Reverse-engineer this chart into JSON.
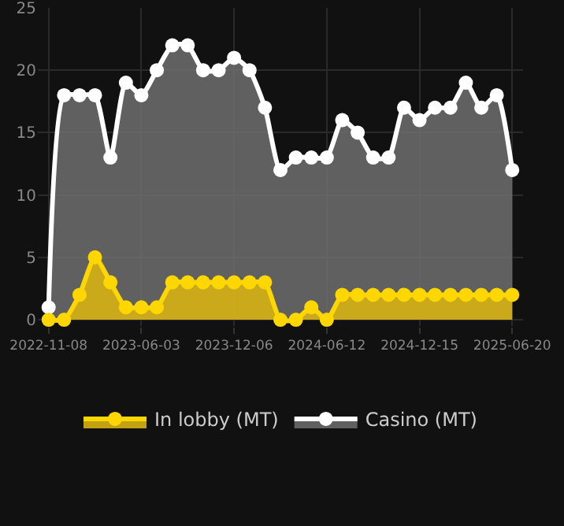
{
  "chart_data": {
    "type": "area",
    "categories": [
      "2022-11-08",
      null,
      null,
      null,
      null,
      null,
      "2023-06-03",
      null,
      null,
      null,
      null,
      null,
      "2023-12-06",
      null,
      null,
      null,
      null,
      null,
      "2024-06-12",
      null,
      null,
      null,
      null,
      null,
      "2024-12-15",
      null,
      null,
      null,
      null,
      null,
      "2025-06-20"
    ],
    "series": [
      {
        "name": "In lobby (MT)",
        "color": "#ffd700",
        "values": [
          0,
          0,
          2,
          5,
          3,
          1,
          1,
          1,
          3,
          3,
          3,
          3,
          3,
          3,
          3,
          0,
          0,
          1,
          0,
          2,
          2,
          2,
          2,
          2,
          2,
          2,
          2,
          2,
          2,
          2,
          2
        ]
      },
      {
        "name": "Casino (MT)",
        "color": "#ffffff",
        "values": [
          1,
          18,
          18,
          18,
          13,
          19,
          18,
          20,
          22,
          22,
          20,
          20,
          21,
          20,
          17,
          12,
          13,
          13,
          13,
          16,
          15,
          13,
          13,
          17,
          16,
          17,
          17,
          19,
          17,
          18,
          12
        ]
      }
    ],
    "ylim": [
      -0.5,
      25
    ],
    "yticks": [
      0,
      5,
      10,
      15,
      20,
      25
    ],
    "grid": true,
    "legend": "bottom",
    "marker": "circle",
    "line_style": "solid"
  }
}
